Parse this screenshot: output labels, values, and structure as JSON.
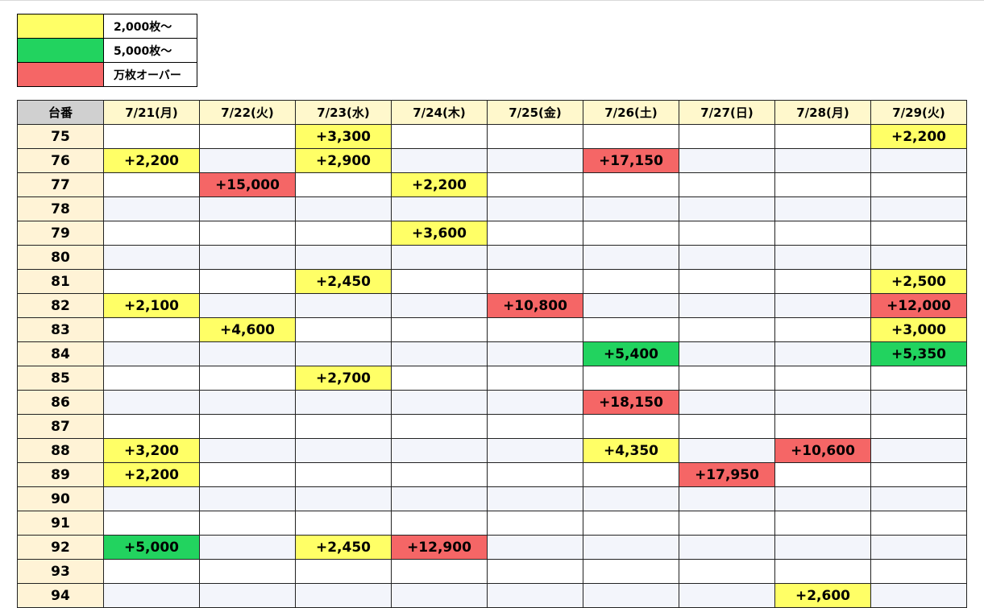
{
  "legend": [
    {
      "label": "2,000枚〜",
      "color": "#ffff66"
    },
    {
      "label": "5,000枚〜",
      "color": "#22d35f"
    },
    {
      "label": "万枚オーバー",
      "color": "#f56666"
    }
  ],
  "table": {
    "corner": "台番",
    "dates": [
      "7/21(月)",
      "7/22(火)",
      "7/23(水)",
      "7/24(木)",
      "7/25(金)",
      "7/26(土)",
      "7/27(日)",
      "7/28(月)",
      "7/29(火)"
    ],
    "rows": [
      {
        "num": "75",
        "cells": [
          "",
          "",
          "+3,300",
          "",
          "",
          "",
          "",
          "",
          "+2,200"
        ]
      },
      {
        "num": "76",
        "cells": [
          "+2,200",
          "",
          "+2,900",
          "",
          "",
          "+17,150",
          "",
          "",
          ""
        ]
      },
      {
        "num": "77",
        "cells": [
          "",
          "+15,000",
          "",
          "+2,200",
          "",
          "",
          "",
          "",
          ""
        ]
      },
      {
        "num": "78",
        "cells": [
          "",
          "",
          "",
          "",
          "",
          "",
          "",
          "",
          ""
        ]
      },
      {
        "num": "79",
        "cells": [
          "",
          "",
          "",
          "+3,600",
          "",
          "",
          "",
          "",
          ""
        ]
      },
      {
        "num": "80",
        "cells": [
          "",
          "",
          "",
          "",
          "",
          "",
          "",
          "",
          ""
        ]
      },
      {
        "num": "81",
        "cells": [
          "",
          "",
          "+2,450",
          "",
          "",
          "",
          "",
          "",
          "+2,500"
        ]
      },
      {
        "num": "82",
        "cells": [
          "+2,100",
          "",
          "",
          "",
          "+10,800",
          "",
          "",
          "",
          "+12,000"
        ]
      },
      {
        "num": "83",
        "cells": [
          "",
          "+4,600",
          "",
          "",
          "",
          "",
          "",
          "",
          "+3,000"
        ]
      },
      {
        "num": "84",
        "cells": [
          "",
          "",
          "",
          "",
          "",
          "+5,400",
          "",
          "",
          "+5,350"
        ]
      },
      {
        "num": "85",
        "cells": [
          "",
          "",
          "+2,700",
          "",
          "",
          "",
          "",
          "",
          ""
        ]
      },
      {
        "num": "86",
        "cells": [
          "",
          "",
          "",
          "",
          "",
          "+18,150",
          "",
          "",
          ""
        ]
      },
      {
        "num": "87",
        "cells": [
          "",
          "",
          "",
          "",
          "",
          "",
          "",
          "",
          ""
        ]
      },
      {
        "num": "88",
        "cells": [
          "+3,200",
          "",
          "",
          "",
          "",
          "+4,350",
          "",
          "+10,600",
          ""
        ]
      },
      {
        "num": "89",
        "cells": [
          "+2,200",
          "",
          "",
          "",
          "",
          "",
          "+17,950",
          "",
          ""
        ]
      },
      {
        "num": "90",
        "cells": [
          "",
          "",
          "",
          "",
          "",
          "",
          "",
          "",
          ""
        ]
      },
      {
        "num": "91",
        "cells": [
          "",
          "",
          "",
          "",
          "",
          "",
          "",
          "",
          ""
        ]
      },
      {
        "num": "92",
        "cells": [
          "+5,000",
          "",
          "+2,450",
          "+12,900",
          "",
          "",
          "",
          "",
          ""
        ]
      },
      {
        "num": "93",
        "cells": [
          "",
          "",
          "",
          "",
          "",
          "",
          "",
          "",
          ""
        ]
      },
      {
        "num": "94",
        "cells": [
          "",
          "",
          "",
          "",
          "",
          "",
          "",
          "+2,600",
          ""
        ]
      }
    ]
  }
}
